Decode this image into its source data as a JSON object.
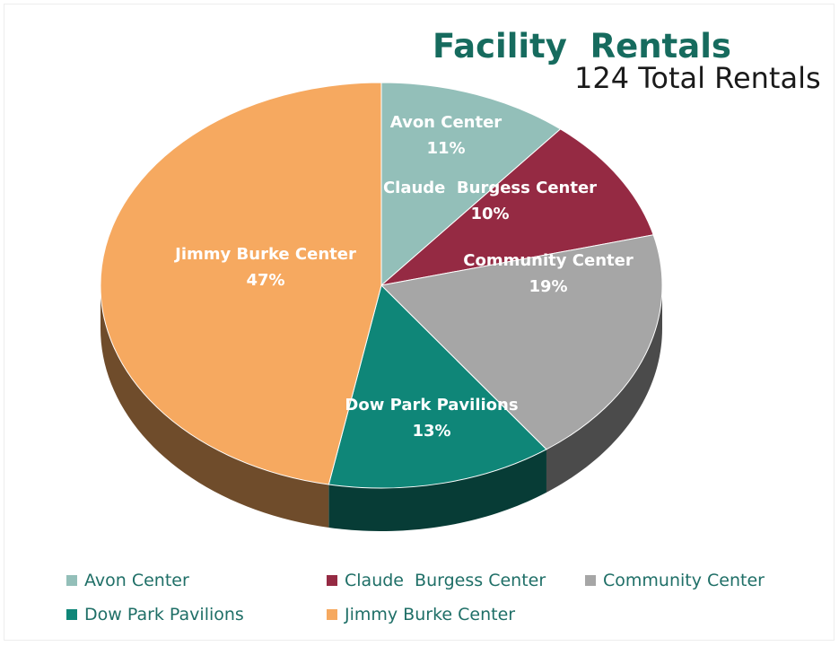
{
  "chart_data": {
    "type": "pie",
    "title": "Facility  Rentals",
    "subtitle": "124 Total Rentals",
    "categories": [
      "Avon Center",
      "Claude  Burgess Center",
      "Community Center",
      "Dow Park Pavilions",
      "Jimmy Burke Center"
    ],
    "values": [
      11,
      10,
      19,
      13,
      47
    ],
    "value_labels": [
      "11%",
      "10%",
      "19%",
      "13%",
      "47%"
    ],
    "colors": [
      "#93bfb9",
      "#952a43",
      "#a6a6a6",
      "#0f8678",
      "#f6a960"
    ],
    "legend_position": "bottom",
    "three_d": true
  }
}
